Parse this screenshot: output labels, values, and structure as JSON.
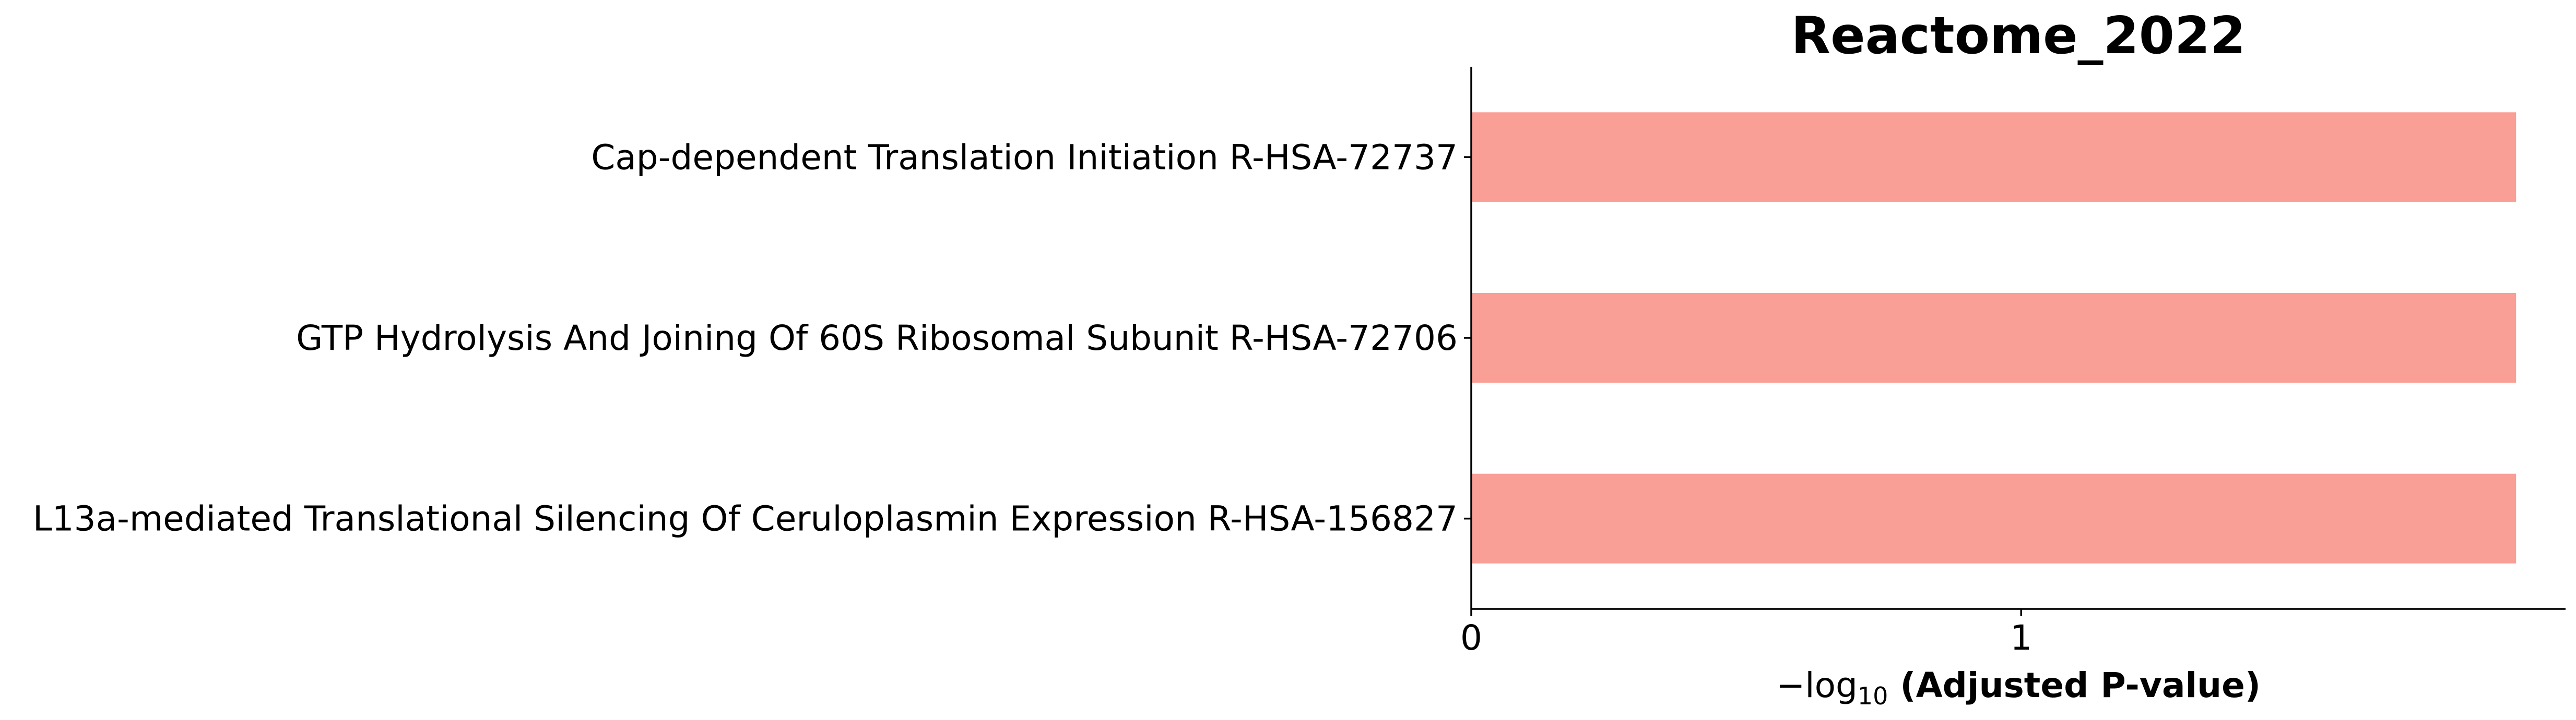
{
  "chart_data": {
    "type": "bar",
    "orientation": "horizontal",
    "title": "Reactome_2022",
    "categories": [
      "Cap-dependent Translation Initiation R-HSA-72737",
      "GTP Hydrolysis And Joining Of 60S Ribosomal Subunit R-HSA-72706",
      "L13a-mediated Translational Silencing Of Ceruloplasmin Expression R-HSA-156827"
    ],
    "values": [
      1.9,
      1.9,
      1.9
    ],
    "xlabel": {
      "prefix": "−log",
      "subscript": "10",
      "suffix": " (Adjusted P-value)"
    },
    "ylabel": "",
    "xlim": [
      0,
      1.99
    ],
    "xticks": [
      {
        "value": 0,
        "label": "0"
      },
      {
        "value": 1,
        "label": "1"
      }
    ],
    "bar_color": "#fa9f96",
    "grid": false,
    "legend": "none"
  }
}
